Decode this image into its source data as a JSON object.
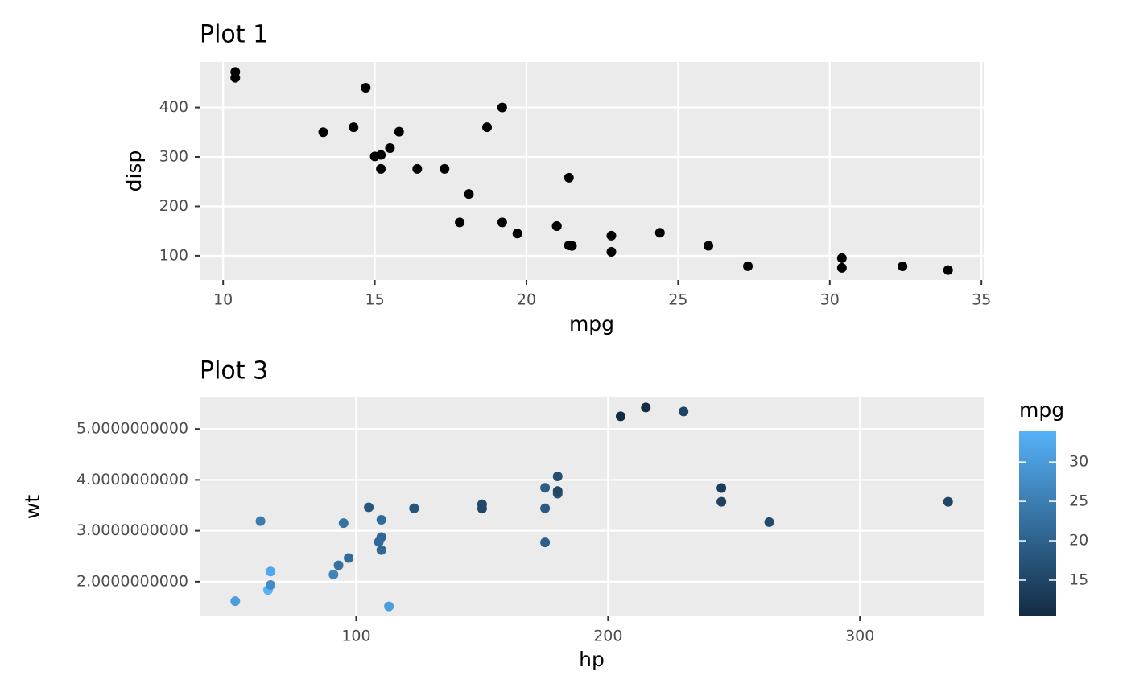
{
  "chart_data": [
    {
      "type": "scatter",
      "title": "Plot 1",
      "x_label": "mpg",
      "y_label": "disp",
      "x": [
        21,
        21,
        22.8,
        21.4,
        18.7,
        18.1,
        14.3,
        24.4,
        22.8,
        19.2,
        17.8,
        16.4,
        17.3,
        15.2,
        10.4,
        10.4,
        14.7,
        32.4,
        30.4,
        33.9,
        21.5,
        15.5,
        15.2,
        13.3,
        19.2,
        27.3,
        26,
        30.4,
        15.8,
        19.7,
        15,
        21.4
      ],
      "values": [
        160,
        160,
        108,
        258,
        360,
        225,
        360,
        146.7,
        140.8,
        167.6,
        167.6,
        275.8,
        275.8,
        275.8,
        472,
        460,
        440,
        78.7,
        75.7,
        71.1,
        120.1,
        318,
        304,
        350,
        400,
        79,
        120.3,
        95.1,
        351,
        145,
        301,
        121
      ],
      "color": "#000000",
      "xlim": [
        9.225,
        35.075
      ],
      "xticks": [
        10,
        15,
        20,
        25,
        30,
        35
      ],
      "ylim": [
        51.055,
        492.045
      ],
      "yticks": [
        100,
        200,
        300,
        400
      ],
      "grid": true
    },
    {
      "type": "scatter",
      "title": "Plot 3",
      "x_label": "hp",
      "y_label": "wt",
      "x": [
        110,
        110,
        93,
        110,
        175,
        105,
        245,
        62,
        95,
        123,
        123,
        180,
        180,
        180,
        205,
        215,
        230,
        66,
        52,
        65,
        97,
        150,
        150,
        245,
        175,
        66,
        91,
        113,
        264,
        175,
        335,
        109
      ],
      "values": [
        2.62,
        2.875,
        2.32,
        3.215,
        3.44,
        3.46,
        3.57,
        3.19,
        3.15,
        3.44,
        3.44,
        4.07,
        3.73,
        3.78,
        5.25,
        5.424,
        5.345,
        2.2,
        1.615,
        1.835,
        2.465,
        3.52,
        3.435,
        3.84,
        3.845,
        1.935,
        2.14,
        1.513,
        3.17,
        2.77,
        3.57,
        2.78
      ],
      "color_values": [
        21,
        21,
        22.8,
        21.4,
        18.7,
        18.1,
        14.3,
        24.4,
        22.8,
        19.2,
        17.8,
        16.4,
        17.3,
        15.2,
        10.4,
        10.4,
        14.7,
        32.4,
        30.4,
        33.9,
        21.5,
        15.5,
        15.2,
        13.3,
        19.2,
        27.3,
        26,
        30.4,
        15.8,
        19.7,
        15,
        21.4
      ],
      "colorbar": {
        "title": "mpg",
        "lim": [
          10.4,
          33.9
        ],
        "ticks": [
          15,
          20,
          25,
          30
        ],
        "low": "#132B43",
        "high": "#56B1F7"
      },
      "xlim": [
        37.85,
        349.15
      ],
      "xticks": [
        100,
        200,
        300
      ],
      "ylim": [
        1.31745,
        5.61955
      ],
      "yticks": [
        {
          "value": 2,
          "label": "2.0000000000"
        },
        {
          "value": 3,
          "label": "3.0000000000"
        },
        {
          "value": 4,
          "label": "4.0000000000"
        },
        {
          "value": 5,
          "label": "5.0000000000"
        }
      ],
      "grid": true
    }
  ]
}
